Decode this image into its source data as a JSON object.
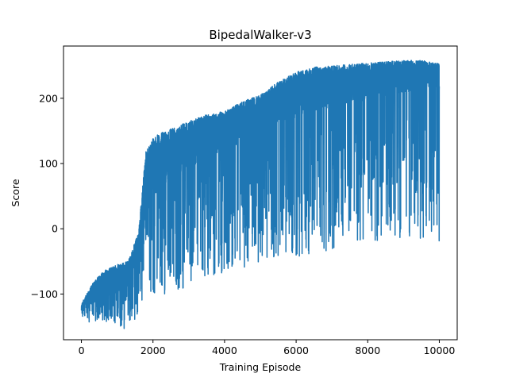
{
  "chart_data": {
    "type": "line",
    "title": "BipedalWalker-v3",
    "xlabel": "Training Episode",
    "ylabel": "Score",
    "xlim": [
      -500,
      10500
    ],
    "ylim": [
      -170,
      280
    ],
    "xticks": [
      0,
      2000,
      4000,
      6000,
      8000,
      10000
    ],
    "yticks": [
      -100,
      0,
      100,
      200
    ],
    "grid": false,
    "series_color": "#1f77b4",
    "envelope": {
      "description_x": [
        0,
        300,
        600,
        1000,
        1300,
        1600,
        1800,
        2000,
        2500,
        3000,
        3500,
        4000,
        4500,
        5000,
        5500,
        6000,
        6500,
        7000,
        7500,
        8000,
        8500,
        9000,
        9500,
        10000
      ],
      "upper": [
        -115,
        -85,
        -65,
        -55,
        -50,
        -5,
        120,
        140,
        155,
        165,
        175,
        180,
        195,
        205,
        225,
        240,
        248,
        250,
        252,
        254,
        256,
        258,
        258,
        255
      ],
      "lower": [
        -140,
        -145,
        -140,
        -150,
        -155,
        -130,
        -105,
        -110,
        -95,
        -90,
        -80,
        -70,
        -60,
        -55,
        -50,
        -45,
        -40,
        -35,
        -30,
        -25,
        -20,
        -15,
        -15,
        -20
      ],
      "center": [
        -125,
        -110,
        -95,
        -90,
        -80,
        -40,
        40,
        70,
        90,
        110,
        120,
        130,
        145,
        160,
        175,
        185,
        195,
        200,
        205,
        210,
        215,
        220,
        220,
        215
      ]
    }
  }
}
